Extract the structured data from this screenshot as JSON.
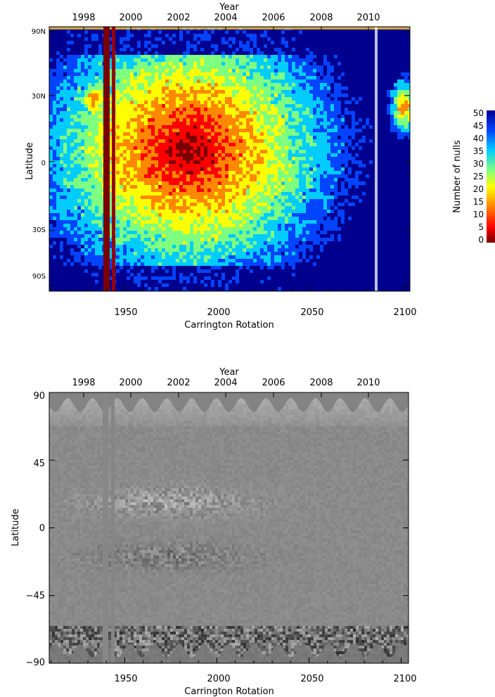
{
  "chart_data": [
    {
      "type": "heatmap",
      "title": "",
      "xlabel": "Carrington Rotation",
      "x2label": "Year",
      "ylabel": "Latitude",
      "xlim": [
        1909,
        2104
      ],
      "x_ticks": [
        "1950",
        "2000",
        "2050",
        "2100"
      ],
      "x2_ticks": [
        "1998",
        "2000",
        "2002",
        "2004",
        "2006",
        "2008",
        "2010"
      ],
      "y_ticks": [
        "90N",
        "30N",
        "0",
        "30S",
        "90S"
      ],
      "colorbar": {
        "label": "Number of nulls",
        "range": [
          0,
          50
        ],
        "ticks": [
          "50",
          "45",
          "40",
          "35",
          "30",
          "25",
          "20",
          "15",
          "10",
          "5",
          "0"
        ],
        "colormap": [
          "#7a0000",
          "#ff0000",
          "#ff8800",
          "#ffff00",
          "#7fff7f",
          "#00ccff",
          "#0044ff",
          "#00008f"
        ]
      },
      "notes": [
        "data gap near CR 1940",
        "high null counts near 0–30 latitude, 1999–2004"
      ]
    },
    {
      "type": "heatmap",
      "title": "",
      "xlabel": "Carrington Rotation",
      "x2label": "Year",
      "ylabel": "Latitude",
      "xlim": [
        1909,
        2104
      ],
      "ylim": [
        -90,
        90
      ],
      "x_ticks": [
        "1950",
        "2000",
        "2050",
        "2100"
      ],
      "x2_ticks": [
        "1998",
        "2000",
        "2002",
        "2004",
        "2006",
        "2008",
        "2010"
      ],
      "y_ticks": [
        "90",
        "45",
        "0",
        "−45",
        "−90"
      ],
      "colormap": [
        "#000000",
        "#808080",
        "#ffffff"
      ]
    }
  ]
}
